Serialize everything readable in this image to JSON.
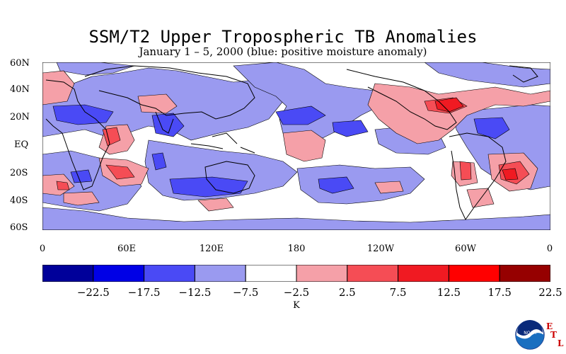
{
  "title": "SSM/T2 Upper Tropospheric TB Anomalies",
  "subtitle": "January 1 – 5, 2000 (blue: positive moisture anomaly)",
  "lat_labels": [
    "60N",
    "40N",
    "20N",
    "EQ",
    "20S",
    "40S",
    "60S"
  ],
  "lon_labels": [
    "0",
    "60E",
    "120E",
    "180",
    "120W",
    "60W",
    "0"
  ],
  "colorbar": {
    "ticks": [
      "−22.5",
      "−17.5",
      "−12.5",
      "−7.5",
      "−2.5",
      "2.5",
      "7.5",
      "12.5",
      "17.5",
      "22.5"
    ],
    "colors": [
      "#00009a",
      "#0000e6",
      "#4a4af5",
      "#9a9af0",
      "#ffffff",
      "#f5a0a8",
      "#f54d55",
      "#f01a22",
      "#ff0000",
      "#960000"
    ],
    "unit": "K"
  },
  "logo": {
    "text": "NOAA",
    "icon": "noaa-logo-icon",
    "etl_letters": [
      "E",
      "T",
      "L"
    ]
  }
}
